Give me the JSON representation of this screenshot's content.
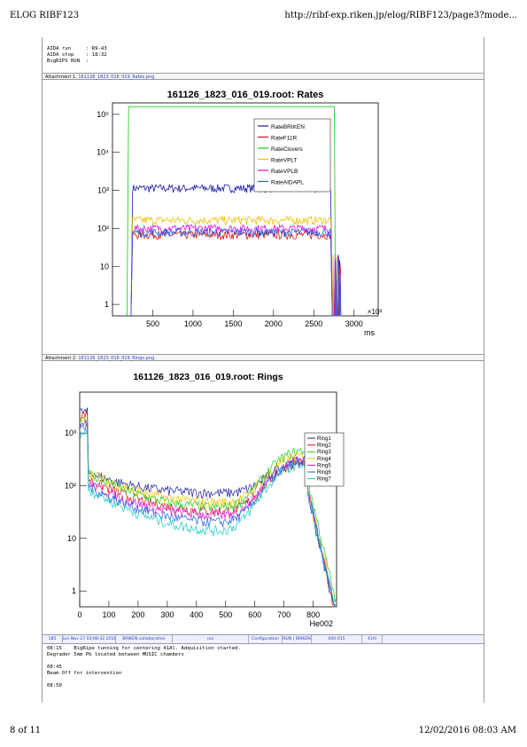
{
  "header": {
    "title": "ELOG RIBF123",
    "url": "http://ribf-exp.riken.jp/elog/RIBF123/page3?mode..."
  },
  "footer": {
    "page": "8 of 11",
    "datetime": "12/02/2016 08:03 AM"
  },
  "aida_info": [
    {
      "label": "AIDA run",
      "value": ": R9-43"
    },
    {
      "label": "AIDA stop",
      "value": ": 18:32"
    },
    {
      "label": "BigRIPS RUN",
      "value": ":"
    }
  ],
  "attachments": [
    {
      "label": "Attachment 1:",
      "file": "161126_1823_016_019_Rates.png"
    },
    {
      "label": "Attachment 2:",
      "file": "161126_1823_016_019_Rings.png"
    }
  ],
  "chart_data": [
    {
      "type": "line",
      "title": "161126_1823_016_019.root: Rates",
      "xlabel": "ms",
      "x_multiplier": "×10³",
      "x_ticks": [
        "500",
        "1000",
        "1500",
        "2000",
        "2500",
        "3000"
      ],
      "y_ticks": [
        "1",
        "10",
        "10²",
        "10³",
        "10⁴",
        "10⁵"
      ],
      "xlim": [
        0,
        3300
      ],
      "ylim": [
        0.5,
        200000
      ],
      "yscale": "log",
      "legend": "top-right",
      "series": [
        {
          "name": "RateBRIKEN",
          "color": "#1a1aa6",
          "level": 1150,
          "start": 250,
          "end": 2720
        },
        {
          "name": "RateF11R",
          "color": "#e01010",
          "level": 68,
          "start": 250,
          "end": 2720
        },
        {
          "name": "RateClovers",
          "color": "#10d010",
          "level": 160000,
          "start": 200,
          "end": 2760
        },
        {
          "name": "RateVPLT",
          "color": "#f0c000",
          "level": 165,
          "start": 250,
          "end": 2720
        },
        {
          "name": "RateVPLB",
          "color": "#e010e0",
          "level": 100,
          "start": 250,
          "end": 2720
        },
        {
          "name": "RateAIDAPL",
          "color": "#2060e0",
          "level": 80,
          "start": 250,
          "end": 2720
        }
      ]
    },
    {
      "type": "line",
      "title": "161126_1823_016_019.root: Rings",
      "xlabel": "He002",
      "x_ticks": [
        "0",
        "100",
        "200",
        "300",
        "400",
        "500",
        "600",
        "700",
        "800"
      ],
      "y_ticks": [
        "1",
        "10",
        "10²",
        "10³"
      ],
      "xlim": [
        0,
        880
      ],
      "ylim": [
        0.5,
        6000
      ],
      "yscale": "log",
      "legend": "top-right",
      "series": [
        {
          "name": "Ring1",
          "color": "#1a1aa6",
          "peak": 230,
          "baseline": 70
        },
        {
          "name": "Ring2",
          "color": "#e01010",
          "peak": 250,
          "baseline": 30
        },
        {
          "name": "Ring3",
          "color": "#10d010",
          "peak": 420,
          "baseline": 35
        },
        {
          "name": "Ring4",
          "color": "#f0c000",
          "peak": 320,
          "baseline": 45
        },
        {
          "name": "Ring5",
          "color": "#e010e0",
          "peak": 280,
          "baseline": 25
        },
        {
          "name": "Ring6",
          "color": "#2060e0",
          "peak": 260,
          "baseline": 18
        },
        {
          "name": "Ring7",
          "color": "#10c8c8",
          "peak": 240,
          "baseline": 12
        }
      ]
    }
  ],
  "entry": {
    "id": "185",
    "date": "Sun Nov 27 03:08:32 2016",
    "author": "BRIKEN collaboration",
    "type": "run",
    "category": "Configuration",
    "subject": "RUN | BRIKEN",
    "run_range": "000-015",
    "setting": "41Al"
  },
  "log": [
    "08:15    BigRipe tunning for centering 41Al. Adquisition started.",
    "Degrader 5mm Pb located between MUSIC chambers",
    "",
    "08:45",
    "Beam Off for intervention",
    "",
    "08:50"
  ]
}
